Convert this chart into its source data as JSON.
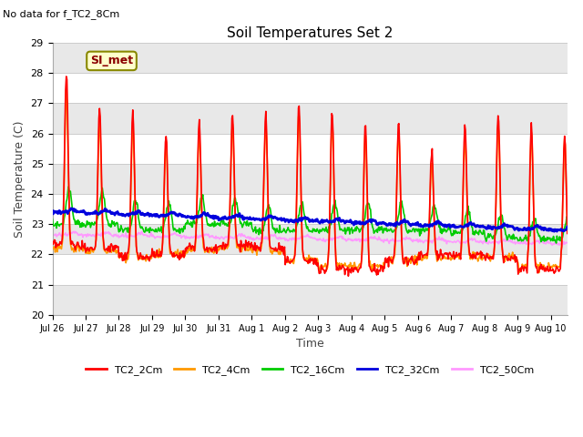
{
  "title": "Soil Temperatures Set 2",
  "subtitle": "No data for f_TC2_8Cm",
  "xlabel": "Time",
  "ylabel": "Soil Temperature (C)",
  "ylim": [
    20.0,
    29.0
  ],
  "yticks": [
    20.0,
    21.0,
    22.0,
    23.0,
    24.0,
    25.0,
    26.0,
    27.0,
    28.0,
    29.0
  ],
  "xlim": [
    0,
    15.5
  ],
  "background_color": "#ffffff",
  "plot_bg_color": "#ffffff",
  "band_color": "#e8e8e8",
  "legend_label": "SI_met",
  "series_colors": {
    "TC2_2Cm": "#ff0000",
    "TC2_4Cm": "#ff9900",
    "TC2_16Cm": "#00cc00",
    "TC2_32Cm": "#0000dd",
    "TC2_50Cm": "#ff99ff"
  },
  "series_linewidths": {
    "TC2_2Cm": 1.2,
    "TC2_4Cm": 1.2,
    "TC2_16Cm": 1.2,
    "TC2_32Cm": 2.0,
    "TC2_50Cm": 1.2
  },
  "x_labels": [
    "Jul 26",
    "Jul 27",
    "Jul 28",
    "Jul 29",
    "Jul 30",
    "Jul 31",
    "Aug 1",
    "Aug 2",
    "Aug 3",
    "Aug 4",
    "Aug 5",
    "Aug 6",
    "Aug 7",
    "Aug 8",
    "Aug 9",
    "Aug 10"
  ],
  "x_ticks": [
    0,
    1,
    2,
    3,
    4,
    5,
    6,
    7,
    8,
    9,
    10,
    11,
    12,
    13,
    14,
    15
  ]
}
